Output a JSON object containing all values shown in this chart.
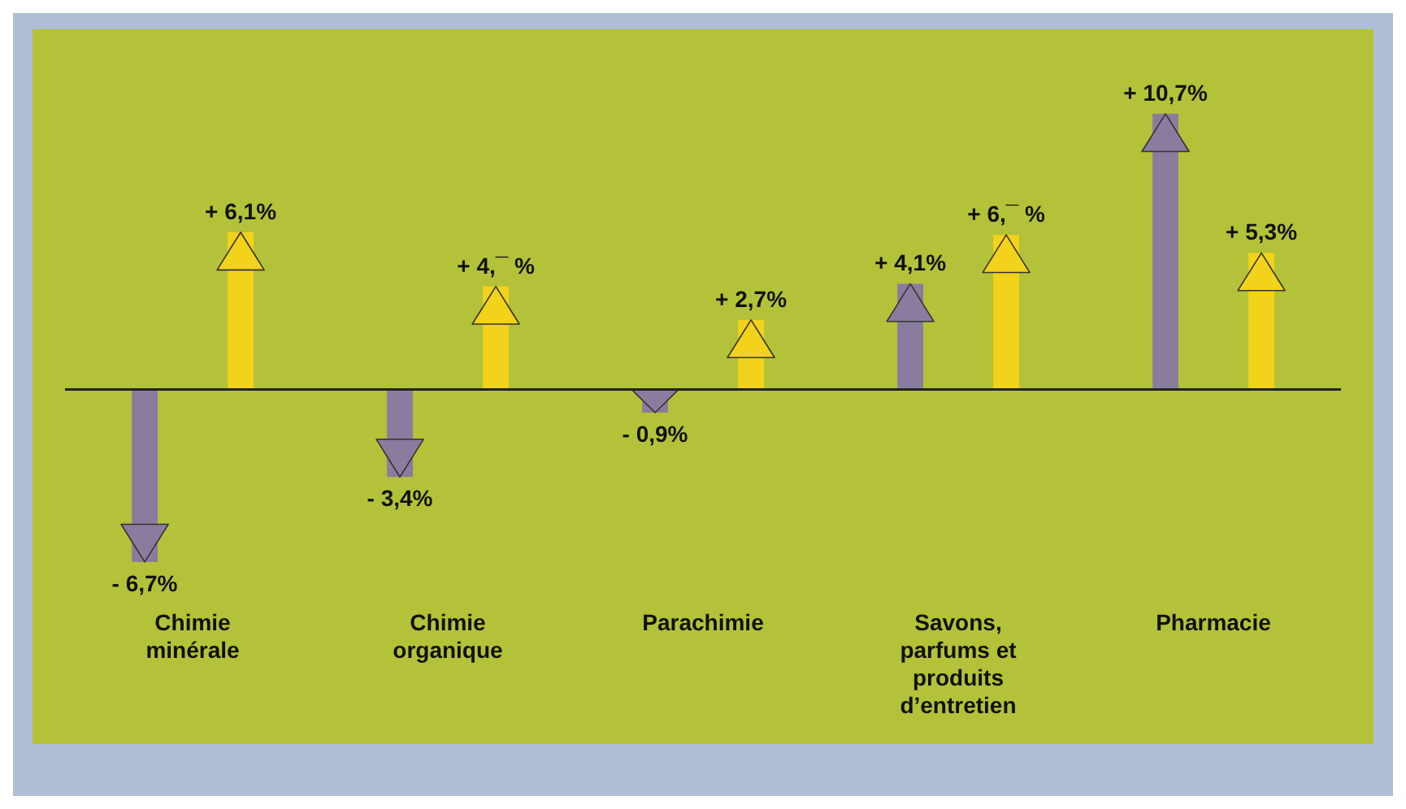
{
  "chart_data": {
    "type": "bar",
    "categories": [
      "Chimie minérale",
      "Chimie organique",
      "Parachimie",
      "Savons, parfums et produits d’entretien",
      "Pharmacie"
    ],
    "series": [
      {
        "color": "#8a7c9e",
        "values": [
          -6.7,
          -3.4,
          -0.9,
          4.1,
          10.7
        ],
        "value_labels": [
          "- 6,7%",
          "- 3,4%",
          "- 0,9%",
          "+ 4,1%",
          "+ 10,7%"
        ]
      },
      {
        "color": "#f2d21a",
        "values": [
          6.1,
          4,
          2.7,
          6,
          5.3
        ],
        "value_labels": [
          "+ 6,1%",
          "+ 4,¯ %",
          "+ 2,7%",
          "+ 6,¯ %",
          "+ 5,3%"
        ]
      }
    ],
    "grid": false,
    "legend": false
  }
}
